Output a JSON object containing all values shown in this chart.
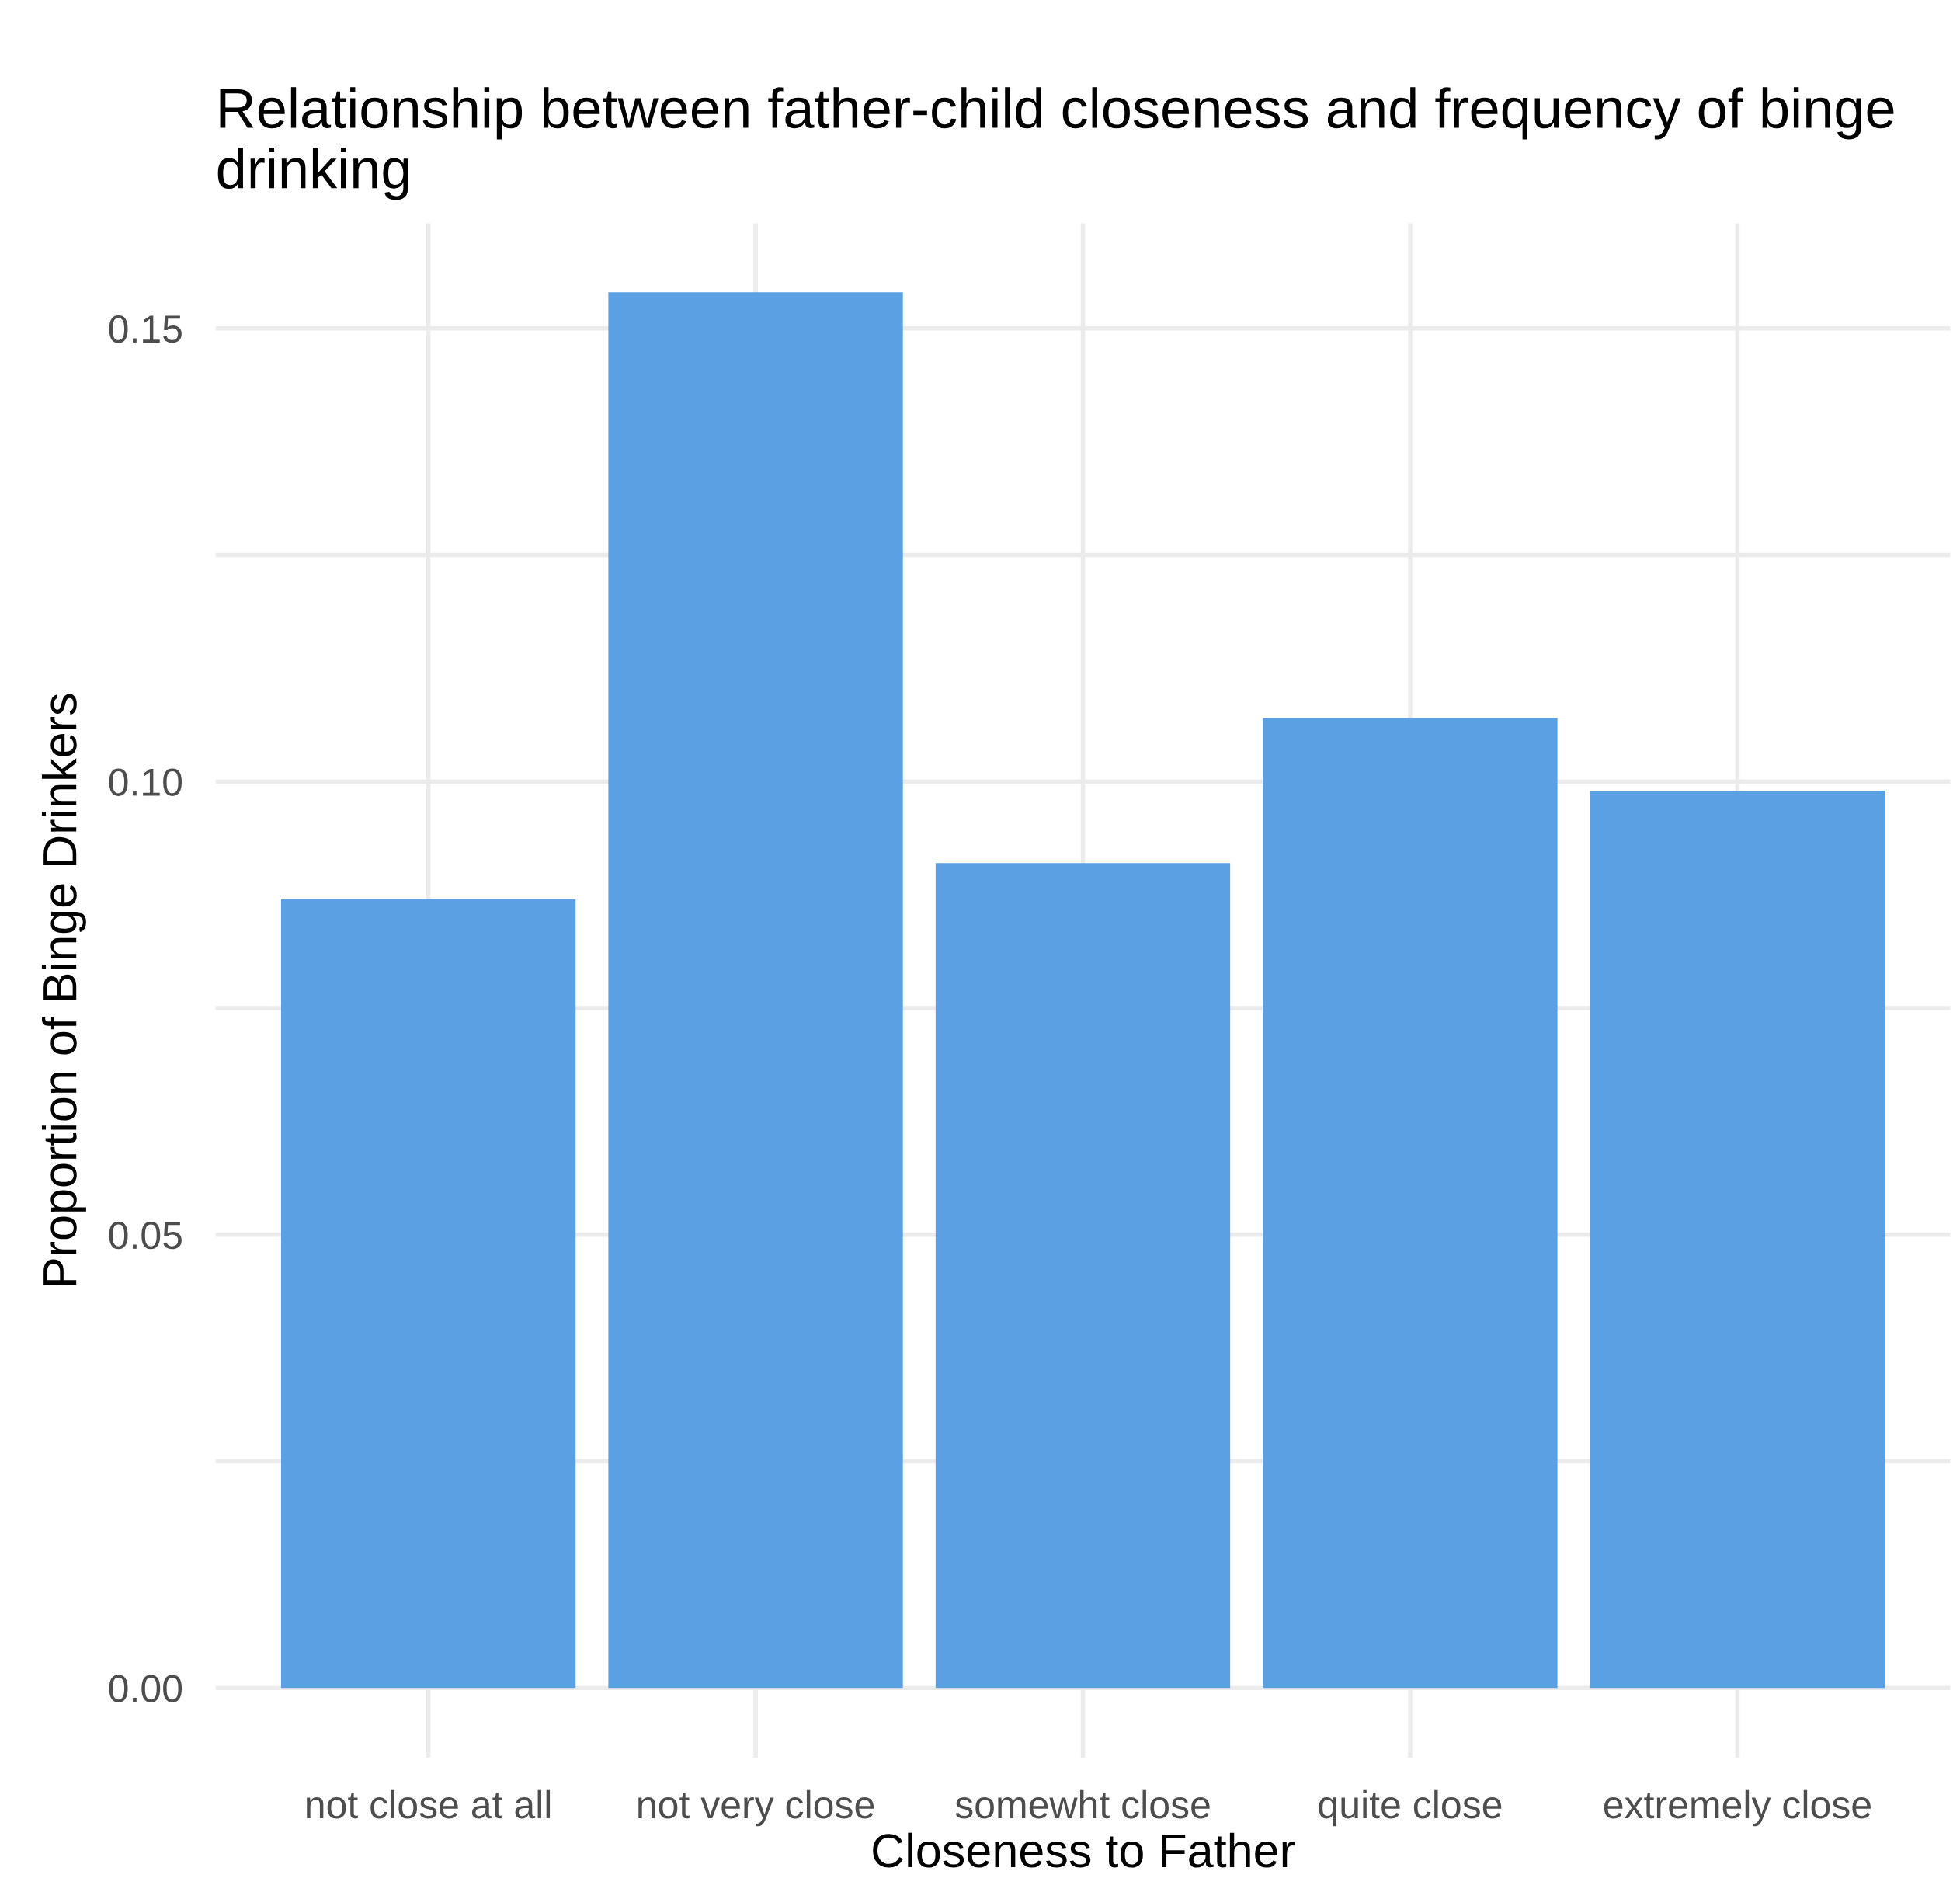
{
  "chart_data": {
    "type": "bar",
    "title": "Relationship between father-child closeness and frequency of binge drinking",
    "xlabel": "Closeness to Father",
    "ylabel": "Proportion of Binge Drinkers",
    "categories": [
      "not close at all",
      "not very close",
      "somewht close",
      "quite close",
      "extremely close"
    ],
    "values": [
      0.087,
      0.154,
      0.091,
      0.107,
      0.099
    ],
    "color": "#5aa0e3",
    "ylim": [
      -0.0077,
      0.1616
    ],
    "yticks": [
      {
        "value": 0,
        "label": "0.00"
      },
      {
        "value": 0.025,
        "label": null
      },
      {
        "value": 0.05,
        "label": "0.05"
      },
      {
        "value": 0.075,
        "label": null
      },
      {
        "value": 0.1,
        "label": "0.10"
      },
      {
        "value": 0.125,
        "label": null
      },
      {
        "value": 0.15,
        "label": "0.15"
      }
    ],
    "grid": true,
    "legend": false
  }
}
